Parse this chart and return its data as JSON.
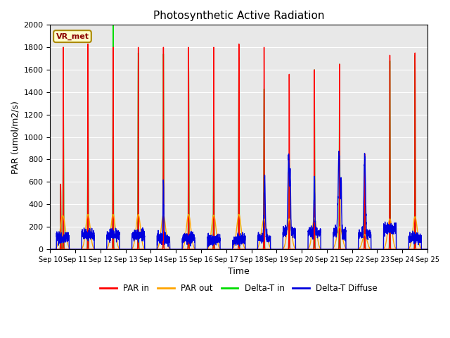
{
  "title": "Photosynthetic Active Radiation",
  "xlabel": "Time",
  "ylabel": "PAR (umol/m2/s)",
  "ylim": [
    0,
    2000
  ],
  "legend_label": "VR_met",
  "series": {
    "PAR_in": {
      "color": "#ff0000",
      "label": "PAR in",
      "linewidth": 1.0
    },
    "PAR_out": {
      "color": "#ffa500",
      "label": "PAR out",
      "linewidth": 1.0
    },
    "Delta_T_in": {
      "color": "#00dd00",
      "label": "Delta-T in",
      "linewidth": 1.0
    },
    "Delta_T_Diffuse": {
      "color": "#0000dd",
      "label": "Delta-T Diffuse",
      "linewidth": 1.0
    }
  },
  "xtick_labels": [
    "Sep 10",
    "Sep 11",
    "Sep 12",
    "Sep 13",
    "Sep 14",
    "Sep 15",
    "Sep 16",
    "Sep 17",
    "Sep 18",
    "Sep 19",
    "Sep 20",
    "Sep 21",
    "Sep 22",
    "Sep 23",
    "Sep 24",
    "Sep 25"
  ],
  "ytick_values": [
    0,
    200,
    400,
    600,
    800,
    1000,
    1200,
    1400,
    1600,
    1800,
    2000
  ],
  "facecolor": "#e8e8e8"
}
